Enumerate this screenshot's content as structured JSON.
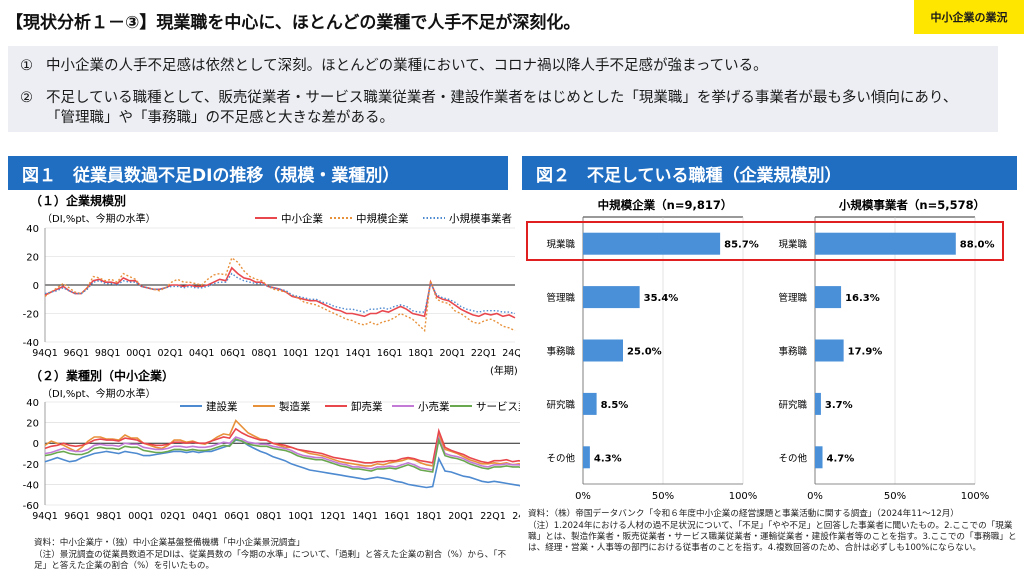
{
  "header": {
    "title": "【現状分析１－③】現業職を中心に、ほとんどの業種で人手不足が深刻化。",
    "badge": "中小企業の業況"
  },
  "bullets": [
    {
      "num": "①",
      "text": "中小企業の人手不足感は依然として深刻。ほとんどの業種において、コロナ禍以降人手不足感が強まっている。"
    },
    {
      "num": "②",
      "text": "不足している職種として、販売従業者・サービス職業従業者・建設作業者をはじめとした「現業職」を挙げる事業者が最も多い傾向にあり、「管理職」や「事務職」の不足感と大きな差がある。"
    }
  ],
  "fig1": {
    "title": "図１　従業員数過不足DIの推移（規模・業種別）",
    "sub1": "（１）企業規模別",
    "sub2": "（２）業種別（中小企業）",
    "unit": "（DI,%pt、今期の水準）",
    "year_unit": "(年期)",
    "source": "資料：中小企業庁・（独）中小企業基盤整備機構「中小企業景況調査」",
    "note": "（注）景況調査の従業員数過不足DIは、従業員数の「今期の水準」について、「過剰」と答えた企業の割合（%）から、「不足」と答えた企業の割合（%）を引いたもの。"
  },
  "fig2": {
    "title": "図２　不足している職種（企業規模別）",
    "source": "資料：（株）帝国データバンク「令和６年度中小企業の経営課題と事業活動に関する調査」（2024年11～12月）",
    "note": "（注）1.2024年における人材の過不足状況について、「不足」「やや不足」と回答した事業者に聞いたもの。2.ここでの「現業職」とは、製造作業者・販売従業者・サービス職業従業者・運輸従業者・建設作業者等のことを指す。3.ここでの「事務職」とは、経理・営業・人事等の部門における従事者のことを指す。4.複数回答のため、合計は必ずしも100%にならない。"
  },
  "chart_data": [
    {
      "type": "line",
      "id": "size",
      "x_ticks": [
        "94Q1",
        "96Q1",
        "98Q1",
        "00Q1",
        "02Q1",
        "04Q1",
        "06Q1",
        "08Q1",
        "10Q1",
        "12Q1",
        "14Q1",
        "16Q1",
        "18Q1",
        "20Q1",
        "22Q1",
        "24Q1"
      ],
      "ylim": [
        -40,
        40
      ],
      "y_ticks": [
        40,
        20,
        0,
        -20,
        -40
      ],
      "series": [
        {
          "name": "中小企業",
          "color": "#e8474e",
          "dash": "",
          "values": [
            -7,
            -5,
            -3,
            -1,
            -4,
            -6,
            -6,
            -2,
            3,
            4,
            2,
            2,
            1,
            5,
            3,
            3,
            -1,
            -2,
            -3,
            -3,
            -2,
            0,
            0,
            -1,
            0,
            -1,
            -1,
            0,
            2,
            4,
            3,
            12,
            8,
            5,
            4,
            2,
            2,
            -1,
            -2,
            -3,
            -5,
            -8,
            -9,
            -10,
            -11,
            -11,
            -13,
            -15,
            -17,
            -18,
            -20,
            -20,
            -21,
            -22,
            -20,
            -20,
            -18,
            -19,
            -17,
            -15,
            -17,
            -20,
            -21,
            -22,
            2,
            -8,
            -10,
            -11,
            -14,
            -17,
            -19,
            -21,
            -22,
            -20,
            -21,
            -20,
            -22,
            -21,
            -23
          ]
        },
        {
          "name": "中規模企業",
          "color": "#e8913b",
          "dash": "2,2",
          "values": [
            -8,
            -5,
            -2,
            1,
            -2,
            -5,
            -6,
            -2,
            6,
            5,
            3,
            4,
            2,
            8,
            6,
            4,
            -1,
            -2,
            -3,
            -4,
            -2,
            2,
            4,
            2,
            2,
            1,
            0,
            4,
            7,
            8,
            7,
            19,
            16,
            10,
            6,
            4,
            3,
            -1,
            -3,
            -4,
            -5,
            -7,
            -9,
            -12,
            -13,
            -14,
            -16,
            -18,
            -20,
            -22,
            -24,
            -25,
            -27,
            -28,
            -26,
            -28,
            -26,
            -25,
            -23,
            -20,
            -22,
            -24,
            -28,
            -32,
            3,
            -10,
            -12,
            -13,
            -18,
            -20,
            -23,
            -26,
            -27,
            -25,
            -24,
            -26,
            -29,
            -30,
            -32
          ]
        },
        {
          "name": "小規模事業者",
          "color": "#4e8ad0",
          "dash": "1.5,2",
          "values": [
            -6,
            -5,
            -4,
            -2,
            -4,
            -6,
            -6,
            -3,
            2,
            3,
            1,
            1,
            0,
            3,
            2,
            2,
            -1,
            -2,
            -3,
            -3,
            -2,
            -1,
            -1,
            -2,
            -1,
            -2,
            -2,
            -1,
            1,
            2,
            2,
            8,
            5,
            3,
            2,
            1,
            1,
            -1,
            -2,
            -3,
            -4,
            -7,
            -8,
            -9,
            -10,
            -10,
            -12,
            -13,
            -15,
            -16,
            -17,
            -17,
            -18,
            -19,
            -17,
            -17,
            -16,
            -17,
            -15,
            -14,
            -15,
            -18,
            -19,
            -19,
            1,
            -7,
            -9,
            -10,
            -12,
            -15,
            -17,
            -18,
            -19,
            -18,
            -18,
            -18,
            -19,
            -19,
            -20
          ]
        }
      ]
    },
    {
      "type": "line",
      "id": "industry",
      "x_ticks": [
        "94Q1",
        "96Q1",
        "98Q1",
        "00Q1",
        "02Q1",
        "04Q1",
        "06Q1",
        "08Q1",
        "10Q1",
        "12Q1",
        "14Q1",
        "16Q1",
        "18Q1",
        "20Q1",
        "22Q1",
        "24Q1"
      ],
      "ylim": [
        -60,
        40
      ],
      "y_ticks": [
        40,
        20,
        0,
        -20,
        -40,
        -60
      ],
      "series": [
        {
          "name": "建設業",
          "color": "#4e8ad0",
          "values": [
            -18,
            -16,
            -14,
            -16,
            -18,
            -17,
            -14,
            -12,
            -10,
            -9,
            -8,
            -9,
            -10,
            -8,
            -9,
            -10,
            -12,
            -12,
            -11,
            -10,
            -9,
            -8,
            -8,
            -9,
            -8,
            -9,
            -8,
            -8,
            -6,
            -4,
            -2,
            3,
            2,
            -2,
            -5,
            -8,
            -10,
            -13,
            -15,
            -17,
            -20,
            -22,
            -24,
            -26,
            -27,
            -28,
            -29,
            -30,
            -31,
            -32,
            -33,
            -34,
            -35,
            -34,
            -33,
            -34,
            -35,
            -37,
            -38,
            -40,
            -41,
            -42,
            -43,
            -42,
            -15,
            -27,
            -28,
            -30,
            -32,
            -33,
            -35,
            -37,
            -38,
            -37,
            -38,
            -39,
            -40,
            -41,
            -43
          ]
        },
        {
          "name": "製造業",
          "color": "#e8913b",
          "values": [
            -2,
            2,
            0,
            -2,
            -5,
            -8,
            -4,
            2,
            6,
            6,
            4,
            4,
            3,
            8,
            5,
            5,
            0,
            -2,
            -4,
            -5,
            -2,
            3,
            3,
            1,
            2,
            0,
            -1,
            2,
            6,
            9,
            8,
            22,
            16,
            10,
            7,
            4,
            3,
            0,
            -2,
            -4,
            -4,
            -6,
            -8,
            -10,
            -11,
            -12,
            -14,
            -16,
            -18,
            -19,
            -20,
            -21,
            -22,
            -22,
            -20,
            -21,
            -19,
            -18,
            -17,
            -15,
            -16,
            -19,
            -21,
            -22,
            8,
            -6,
            -8,
            -10,
            -13,
            -16,
            -18,
            -20,
            -20,
            -19,
            -20,
            -19,
            -21,
            -20,
            -21
          ]
        },
        {
          "name": "卸売業",
          "color": "#e8474e",
          "values": [
            -5,
            -3,
            -2,
            0,
            -2,
            -3,
            -2,
            0,
            3,
            4,
            3,
            3,
            2,
            5,
            4,
            3,
            0,
            -1,
            -2,
            -2,
            -1,
            1,
            1,
            0,
            1,
            0,
            0,
            2,
            4,
            6,
            5,
            14,
            10,
            7,
            5,
            3,
            3,
            0,
            -1,
            -2,
            -4,
            -6,
            -7,
            -8,
            -9,
            -10,
            -12,
            -14,
            -15,
            -16,
            -17,
            -18,
            -19,
            -19,
            -18,
            -18,
            -17,
            -17,
            -15,
            -14,
            -15,
            -17,
            -18,
            -19,
            12,
            -4,
            -7,
            -9,
            -11,
            -14,
            -16,
            -18,
            -19,
            -17,
            -17,
            -16,
            -18,
            -17,
            -18
          ]
        },
        {
          "name": "小売業",
          "color": "#c27ad6",
          "values": [
            -10,
            -9,
            -7,
            -5,
            -7,
            -8,
            -8,
            -6,
            -2,
            -1,
            -2,
            -2,
            -3,
            0,
            -1,
            -1,
            -4,
            -5,
            -6,
            -6,
            -5,
            -3,
            -3,
            -4,
            -3,
            -4,
            -4,
            -3,
            -1,
            1,
            0,
            6,
            4,
            1,
            0,
            -1,
            -1,
            -3,
            -4,
            -5,
            -7,
            -10,
            -12,
            -13,
            -14,
            -14,
            -16,
            -18,
            -20,
            -21,
            -23,
            -23,
            -24,
            -25,
            -23,
            -23,
            -22,
            -23,
            -21,
            -19,
            -21,
            -24,
            -25,
            -26,
            5,
            -10,
            -12,
            -13,
            -15,
            -18,
            -20,
            -22,
            -23,
            -21,
            -21,
            -20,
            -21,
            -21,
            -22
          ]
        },
        {
          "name": "サービス業",
          "color": "#6aa84f",
          "values": [
            -12,
            -11,
            -9,
            -8,
            -10,
            -11,
            -11,
            -9,
            -5,
            -4,
            -5,
            -5,
            -6,
            -3,
            -4,
            -4,
            -7,
            -8,
            -9,
            -9,
            -8,
            -6,
            -6,
            -7,
            -6,
            -7,
            -7,
            -6,
            -4,
            -2,
            -3,
            4,
            2,
            -1,
            -2,
            -3,
            -3,
            -5,
            -6,
            -7,
            -9,
            -12,
            -14,
            -15,
            -16,
            -16,
            -18,
            -20,
            -22,
            -23,
            -25,
            -25,
            -26,
            -27,
            -25,
            -25,
            -24,
            -25,
            -23,
            -21,
            -23,
            -26,
            -27,
            -28,
            3,
            -12,
            -14,
            -15,
            -17,
            -20,
            -22,
            -24,
            -25,
            -23,
            -23,
            -22,
            -23,
            -23,
            -25
          ]
        }
      ]
    },
    {
      "type": "bar",
      "id": "mid",
      "title": "中規模企業（n=9,817）",
      "categories": [
        "現業職",
        "管理職",
        "事務職",
        "研究職",
        "その他"
      ],
      "values": [
        85.7,
        35.4,
        25.0,
        8.5,
        4.3
      ],
      "value_labels": [
        "85.7%",
        "35.4%",
        "25.0%",
        "8.5%",
        "4.3%"
      ],
      "xlim": [
        0,
        100
      ],
      "x_ticks": [
        "0%",
        "50%",
        "100%"
      ],
      "color": "#4a90d9"
    },
    {
      "type": "bar",
      "id": "small",
      "title": "小規模事業者（n=5,578）",
      "categories": [
        "現業職",
        "管理職",
        "事務職",
        "研究職",
        "その他"
      ],
      "values": [
        88.0,
        16.3,
        17.9,
        3.7,
        4.7
      ],
      "value_labels": [
        "88.0%",
        "16.3%",
        "17.9%",
        "3.7%",
        "4.7%"
      ],
      "xlim": [
        0,
        100
      ],
      "x_ticks": [
        "0%",
        "50%",
        "100%"
      ],
      "color": "#4a90d9"
    }
  ]
}
